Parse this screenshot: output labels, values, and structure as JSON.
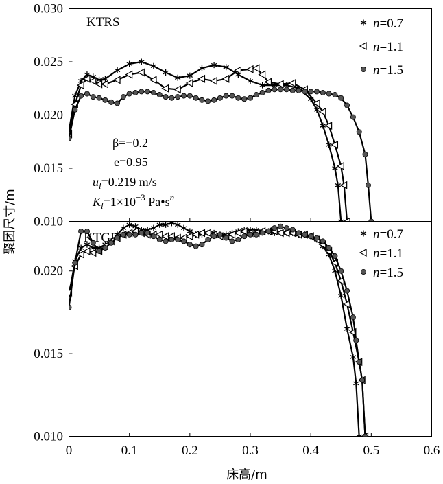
{
  "chart_data": {
    "type": "line",
    "xlabel": "床高/m",
    "ylabel": "聚团尺寸/m",
    "xlim": [
      0,
      0.6
    ],
    "xticks": [
      "0",
      "0.1",
      "0.2",
      "0.3",
      "0.4",
      "0.5",
      "0.6"
    ],
    "panels": [
      {
        "title": "KTRS",
        "ylim": [
          0.01,
          0.03
        ],
        "yticks": [
          "0.010",
          "0.015",
          "0.020",
          "0.025",
          "0.030"
        ],
        "annotation": {
          "beta": "β=−0.2",
          "e": "e=0.95",
          "u": "u",
          "u_sub": "l",
          "u_val": "=0.219 m/s",
          "k": "K",
          "k_sub": "l",
          "k_val": "=1×10",
          "k_exp": "−3",
          "k_unit": " Pa•s",
          "k_unit_exp": "n"
        },
        "series": [
          {
            "name": "n=0.7",
            "marker": "star",
            "x": [
              0,
              0.01,
              0.02,
              0.03,
              0.04,
              0.05,
              0.06,
              0.08,
              0.1,
              0.12,
              0.14,
              0.16,
              0.18,
              0.2,
              0.22,
              0.24,
              0.26,
              0.28,
              0.3,
              0.32,
              0.34,
              0.36,
              0.38,
              0.4,
              0.41,
              0.42,
              0.43,
              0.44,
              0.445,
              0.45
            ],
            "y": [
              0.0185,
              0.0218,
              0.0232,
              0.0238,
              0.0236,
              0.0233,
              0.0234,
              0.0242,
              0.0248,
              0.025,
              0.0246,
              0.024,
              0.0235,
              0.0237,
              0.0244,
              0.0247,
              0.0245,
              0.0238,
              0.0232,
              0.0228,
              0.0228,
              0.0228,
              0.0225,
              0.0215,
              0.0205,
              0.019,
              0.0172,
              0.015,
              0.0134,
              0.01
            ]
          },
          {
            "name": "n=1.1",
            "marker": "triangle-left",
            "x": [
              0,
              0.01,
              0.02,
              0.03,
              0.04,
              0.05,
              0.06,
              0.08,
              0.1,
              0.12,
              0.14,
              0.16,
              0.18,
              0.2,
              0.22,
              0.24,
              0.26,
              0.28,
              0.3,
              0.31,
              0.32,
              0.33,
              0.35,
              0.37,
              0.39,
              0.41,
              0.42,
              0.43,
              0.44,
              0.45,
              0.455,
              0.46
            ],
            "y": [
              0.0182,
              0.021,
              0.0228,
              0.0234,
              0.0232,
              0.0229,
              0.0229,
              0.0233,
              0.0238,
              0.024,
              0.0233,
              0.0225,
              0.0224,
              0.023,
              0.0234,
              0.0232,
              0.0234,
              0.0242,
              0.0243,
              0.0244,
              0.0238,
              0.0231,
              0.0229,
              0.023,
              0.0224,
              0.0211,
              0.0203,
              0.019,
              0.0172,
              0.0152,
              0.0134,
              0.01
            ]
          },
          {
            "name": "n=1.5",
            "marker": "ball",
            "x": [
              0,
              0.01,
              0.02,
              0.03,
              0.04,
              0.05,
              0.06,
              0.07,
              0.08,
              0.09,
              0.1,
              0.11,
              0.12,
              0.13,
              0.14,
              0.15,
              0.16,
              0.17,
              0.18,
              0.19,
              0.2,
              0.21,
              0.22,
              0.23,
              0.24,
              0.25,
              0.26,
              0.27,
              0.28,
              0.29,
              0.3,
              0.31,
              0.32,
              0.33,
              0.34,
              0.35,
              0.36,
              0.37,
              0.38,
              0.39,
              0.4,
              0.41,
              0.42,
              0.43,
              0.44,
              0.45,
              0.46,
              0.47,
              0.48,
              0.49,
              0.495,
              0.5
            ],
            "y": [
              0.0178,
              0.0205,
              0.0218,
              0.022,
              0.0217,
              0.0216,
              0.0214,
              0.0212,
              0.0211,
              0.0217,
              0.022,
              0.0221,
              0.0222,
              0.0222,
              0.0221,
              0.0219,
              0.0217,
              0.0216,
              0.0217,
              0.0218,
              0.0218,
              0.0216,
              0.0214,
              0.0213,
              0.0214,
              0.0216,
              0.0218,
              0.0218,
              0.0216,
              0.0215,
              0.0216,
              0.0219,
              0.0221,
              0.0223,
              0.0224,
              0.0224,
              0.0224,
              0.0223,
              0.0223,
              0.0222,
              0.0222,
              0.0222,
              0.0221,
              0.022,
              0.0219,
              0.0216,
              0.0209,
              0.0198,
              0.0184,
              0.0163,
              0.0134,
              0.01
            ]
          }
        ]
      },
      {
        "title": "KTGF",
        "ylim": [
          0.01,
          0.023
        ],
        "yticks": [
          "0.010",
          "0.015",
          "0.020"
        ],
        "series": [
          {
            "name": "n=0.7",
            "marker": "star",
            "x": [
              0,
              0.01,
              0.02,
              0.03,
              0.04,
              0.05,
              0.06,
              0.07,
              0.08,
              0.09,
              0.1,
              0.11,
              0.12,
              0.13,
              0.14,
              0.15,
              0.16,
              0.17,
              0.18,
              0.19,
              0.2,
              0.21,
              0.22,
              0.23,
              0.24,
              0.25,
              0.26,
              0.27,
              0.28,
              0.29,
              0.3,
              0.31,
              0.32,
              0.33,
              0.34,
              0.35,
              0.36,
              0.37,
              0.38,
              0.39,
              0.4,
              0.41,
              0.42,
              0.43,
              0.44,
              0.45,
              0.46,
              0.47,
              0.475,
              0.48
            ],
            "y": [
              0.0185,
              0.0206,
              0.0214,
              0.0216,
              0.0214,
              0.0214,
              0.0216,
              0.0218,
              0.0222,
              0.0226,
              0.0228,
              0.0227,
              0.0225,
              0.0225,
              0.0226,
              0.0228,
              0.0228,
              0.0229,
              0.0228,
              0.0226,
              0.0224,
              0.0222,
              0.0222,
              0.0223,
              0.0223,
              0.0222,
              0.0222,
              0.0223,
              0.0224,
              0.0225,
              0.0225,
              0.0225,
              0.0224,
              0.0224,
              0.0223,
              0.0223,
              0.0223,
              0.0223,
              0.0222,
              0.0222,
              0.0221,
              0.0219,
              0.0215,
              0.021,
              0.02,
              0.0185,
              0.0165,
              0.0148,
              0.0132,
              0.01
            ]
          },
          {
            "name": "n=1.1",
            "marker": "triangle-left",
            "x": [
              0,
              0.01,
              0.02,
              0.03,
              0.04,
              0.05,
              0.06,
              0.07,
              0.08,
              0.09,
              0.1,
              0.11,
              0.12,
              0.13,
              0.14,
              0.15,
              0.16,
              0.17,
              0.18,
              0.19,
              0.2,
              0.21,
              0.22,
              0.23,
              0.24,
              0.25,
              0.26,
              0.27,
              0.28,
              0.29,
              0.3,
              0.31,
              0.32,
              0.33,
              0.34,
              0.35,
              0.36,
              0.37,
              0.38,
              0.39,
              0.4,
              0.41,
              0.42,
              0.43,
              0.44,
              0.45,
              0.46,
              0.47,
              0.48,
              0.485,
              0.49
            ],
            "y": [
              0.0187,
              0.0203,
              0.021,
              0.0212,
              0.0211,
              0.0212,
              0.0215,
              0.0218,
              0.022,
              0.0222,
              0.0223,
              0.0224,
              0.0223,
              0.0222,
              0.0222,
              0.0222,
              0.0221,
              0.0221,
              0.022,
              0.022,
              0.0221,
              0.0222,
              0.0223,
              0.0223,
              0.0222,
              0.0221,
              0.0221,
              0.0222,
              0.0223,
              0.0224,
              0.0223,
              0.0223,
              0.0224,
              0.0224,
              0.0224,
              0.0223,
              0.0223,
              0.0223,
              0.0222,
              0.0222,
              0.0221,
              0.0219,
              0.0216,
              0.0212,
              0.0205,
              0.0194,
              0.018,
              0.0163,
              0.0145,
              0.0134,
              0.01
            ]
          },
          {
            "name": "n=1.5",
            "marker": "ball",
            "x": [
              0,
              0.01,
              0.02,
              0.03,
              0.04,
              0.05,
              0.06,
              0.07,
              0.08,
              0.09,
              0.1,
              0.11,
              0.12,
              0.13,
              0.14,
              0.15,
              0.16,
              0.17,
              0.18,
              0.19,
              0.2,
              0.21,
              0.22,
              0.23,
              0.24,
              0.25,
              0.26,
              0.27,
              0.28,
              0.29,
              0.3,
              0.31,
              0.32,
              0.33,
              0.34,
              0.35,
              0.36,
              0.37,
              0.38,
              0.39,
              0.4,
              0.41,
              0.42,
              0.43,
              0.44,
              0.45,
              0.46,
              0.47,
              0.475,
              0.48,
              0.485,
              0.49
            ],
            "y": [
              0.0178,
              0.0205,
              0.0224,
              0.0224,
              0.0217,
              0.0212,
              0.0214,
              0.0217,
              0.022,
              0.0222,
              0.0222,
              0.0222,
              0.0223,
              0.0223,
              0.0221,
              0.0219,
              0.0218,
              0.0219,
              0.0219,
              0.0218,
              0.0216,
              0.0215,
              0.0216,
              0.0219,
              0.0221,
              0.0222,
              0.022,
              0.0218,
              0.0219,
              0.0221,
              0.0222,
              0.0222,
              0.0223,
              0.0224,
              0.0226,
              0.0227,
              0.0226,
              0.0225,
              0.0223,
              0.0222,
              0.0221,
              0.022,
              0.0218,
              0.0214,
              0.0209,
              0.02,
              0.0188,
              0.0172,
              0.0158,
              0.0145,
              0.0134,
              0.01
            ]
          }
        ]
      }
    ]
  }
}
